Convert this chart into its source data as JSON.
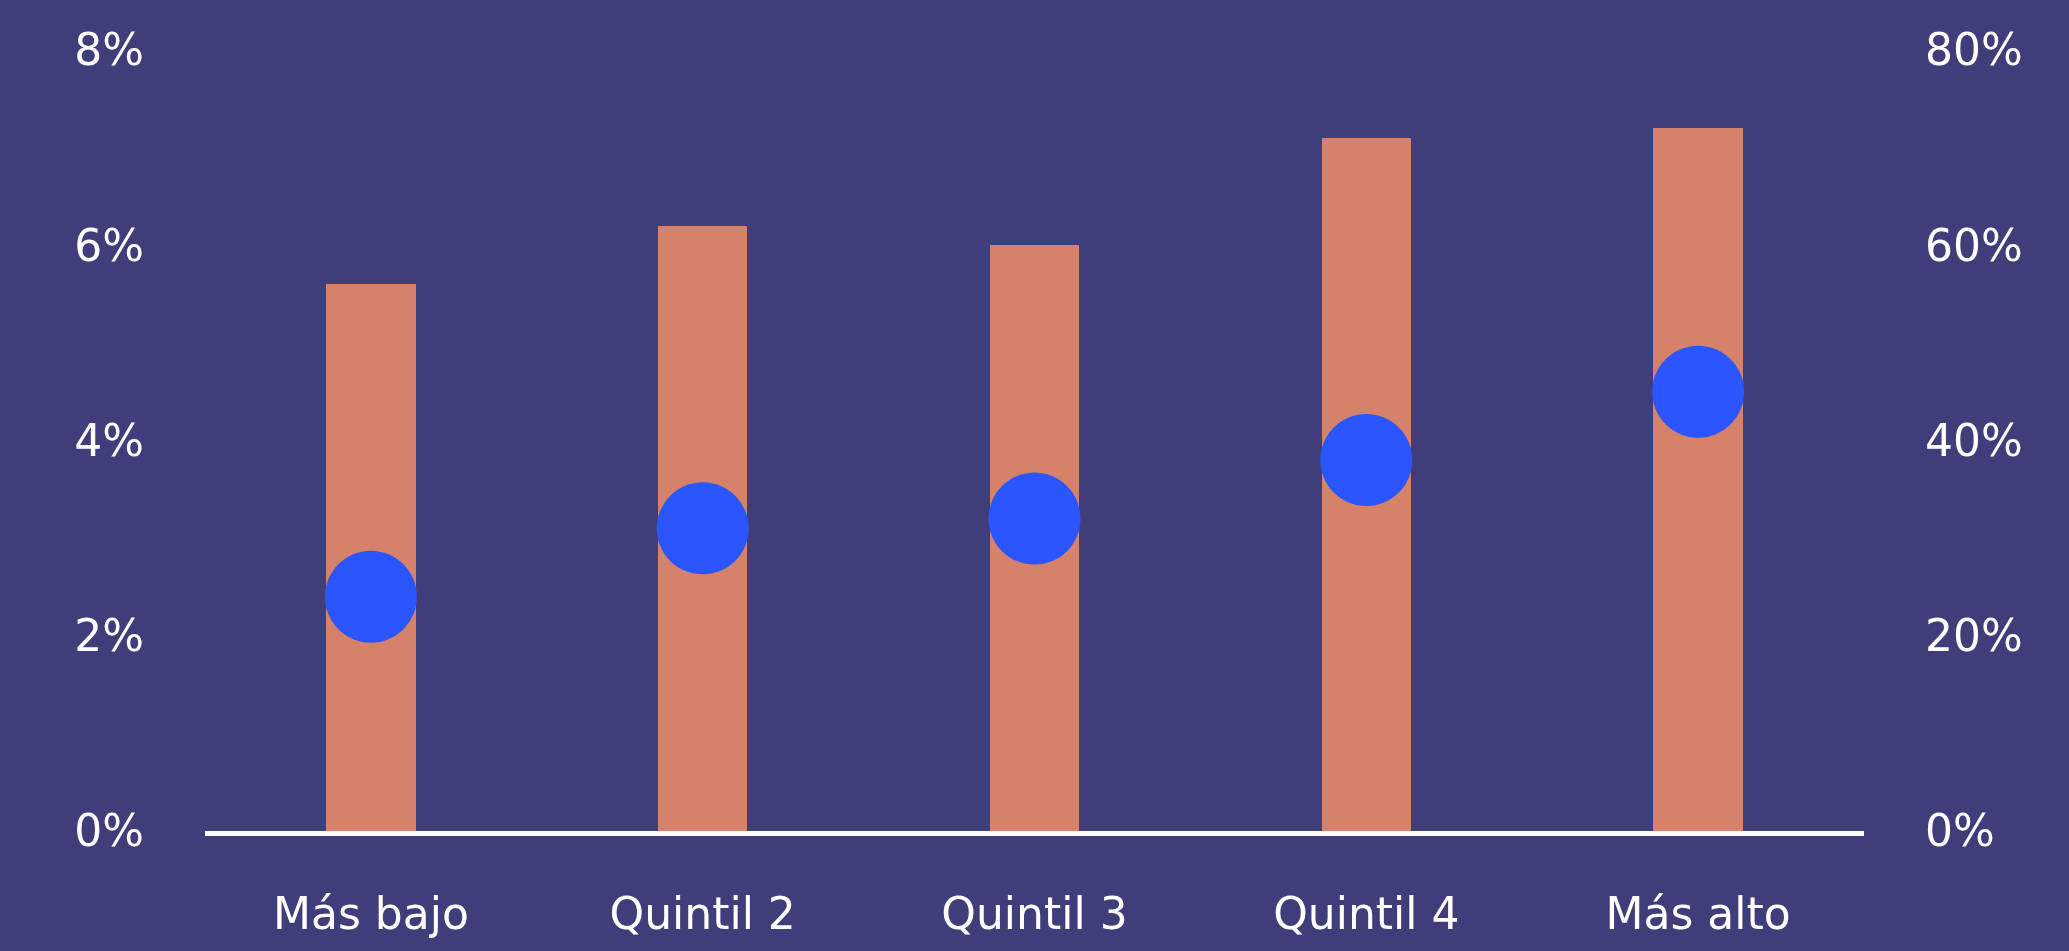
{
  "chart_data": {
    "type": "bar",
    "categories": [
      "Más bajo",
      "Quintil 2",
      "Quintil 3",
      "Quintil 4",
      "Más alto"
    ],
    "series": [
      {
        "color": "#d6826a",
        "values": [
          5.6,
          6.2,
          6.0,
          7.1,
          7.2
        ]
      },
      {
        "type": "scatter",
        "axis": "y2",
        "color": "#2a55ff",
        "marker": "circle",
        "values": [
          24,
          31,
          32,
          38,
          45
        ]
      }
    ],
    "ylim": [
      0,
      8
    ],
    "yticks": [
      {
        "value": 0,
        "label": "0%"
      },
      {
        "value": 2,
        "label": "2%"
      },
      {
        "value": 4,
        "label": "4%"
      },
      {
        "value": 6,
        "label": "6%"
      },
      {
        "value": 8,
        "label": "8%"
      }
    ],
    "y2lim": [
      0,
      80
    ],
    "y2ticks": [
      {
        "value": 0,
        "label": "0%"
      },
      {
        "value": 20,
        "label": "20%"
      },
      {
        "value": 40,
        "label": "40%"
      },
      {
        "value": 60,
        "label": "60%"
      },
      {
        "value": 80,
        "label": "80%"
      }
    ],
    "grid": false
  }
}
